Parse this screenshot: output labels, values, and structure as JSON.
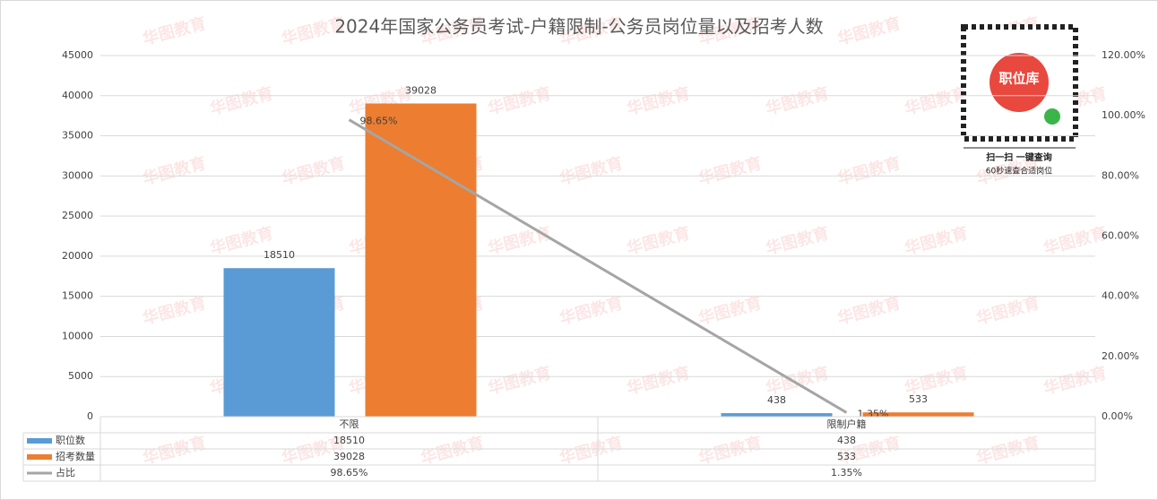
{
  "chart_data": {
    "type": "bar",
    "title": "2024年国家公务员考试-户籍限制-公务员岗位量以及招考人数",
    "categories": [
      "不限",
      "限制户籍"
    ],
    "series": [
      {
        "name": "职位数",
        "color": "#5b9bd5",
        "values": [
          18510,
          438
        ]
      },
      {
        "name": "招考数量",
        "color": "#ed7d31",
        "values": [
          39028,
          533
        ]
      },
      {
        "name": "占比",
        "type": "line",
        "axis": "y2",
        "color": "#a5a5a5",
        "values": [
          98.65,
          1.35
        ],
        "value_labels": [
          "98.65%",
          "1.35%"
        ]
      }
    ],
    "ylim": [
      0,
      45000
    ],
    "yticks": [
      0,
      5000,
      10000,
      15000,
      20000,
      25000,
      30000,
      35000,
      40000,
      45000
    ],
    "y2lim": [
      0,
      120
    ],
    "y2ticks": [
      {
        "value": 0,
        "label": "0.00%"
      },
      {
        "value": 20,
        "label": "20.00%"
      },
      {
        "value": 40,
        "label": "40.00%"
      },
      {
        "value": 60,
        "label": "60.00%"
      },
      {
        "value": 80,
        "label": "80.00%"
      },
      {
        "value": 100,
        "label": "100.00%"
      },
      {
        "value": 120,
        "label": "120.00%"
      }
    ],
    "grid": true,
    "data_table": true
  },
  "qr_code": {
    "label": "职位库",
    "caption": "扫一扫 一键查询",
    "subcaption": "60秒速查合适岗位"
  },
  "watermark": "华图教育"
}
